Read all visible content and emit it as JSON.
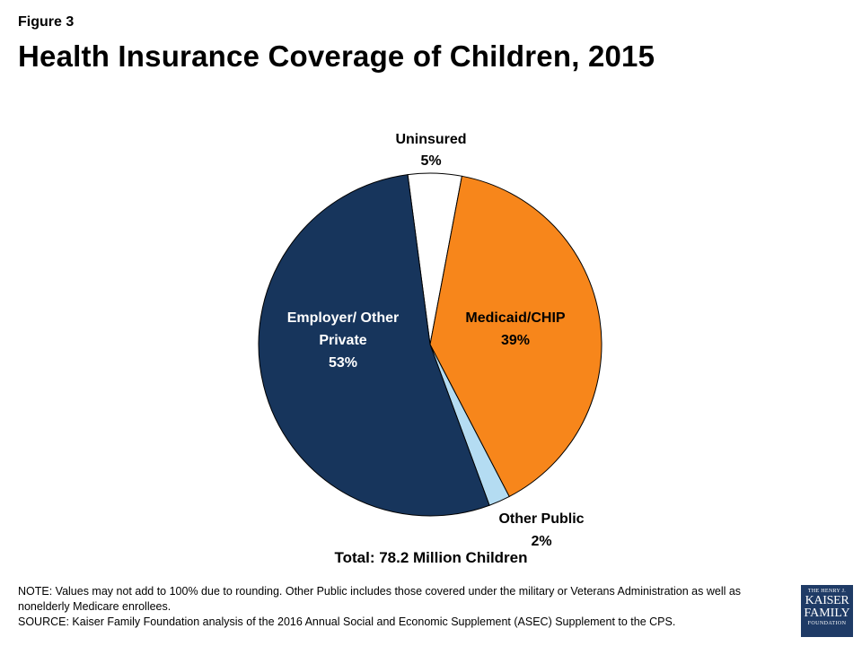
{
  "figure_label": "Figure 3",
  "title": "Health Insurance Coverage of Children, 2015",
  "chart_data": {
    "type": "pie",
    "slices": [
      {
        "label": "Uninsured",
        "value": 5,
        "display": "5%",
        "color": "#ffffff"
      },
      {
        "label": "Medicaid/CHIP",
        "value": 39,
        "display": "39%",
        "color": "#f7861b"
      },
      {
        "label": "Other Public",
        "value": 2,
        "display": "2%",
        "color": "#b4dcf2"
      },
      {
        "label": "Employer/ Other Private",
        "value": 53,
        "display": "53%",
        "color": "#17355c"
      }
    ],
    "stroke_color": "#000000"
  },
  "total_label": "Total:  78.2 Million Children",
  "notes": {
    "note": "NOTE: Values may not add to 100% due to rounding. Other Public includes those covered under the military or Veterans Administration as well as nonelderly Medicare enrollees.",
    "source": "SOURCE: Kaiser Family Foundation analysis of the 2016 Annual Social and Economic Supplement (ASEC) Supplement to the CPS."
  },
  "logo": {
    "line1": "THE HENRY J.",
    "line2": "KAISER",
    "line3": "FAMILY",
    "line4": "FOUNDATION"
  }
}
